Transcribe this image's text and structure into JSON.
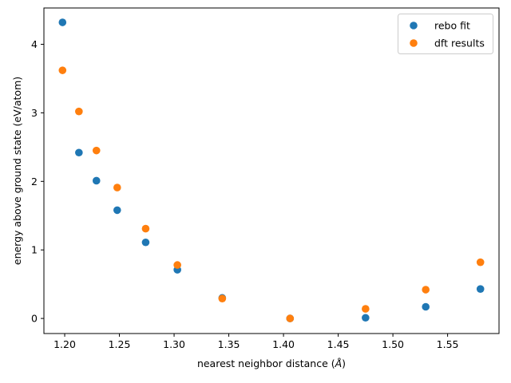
{
  "chart_data": {
    "type": "scatter",
    "title": "",
    "xlabel": "nearest neighbor distance (",
    "xlabel_unit": "Å",
    "xlabel_suffix": ")",
    "ylabel": "energy above ground state (eV/atom)",
    "xlim": [
      1.181,
      1.597
    ],
    "ylim": [
      -0.22,
      4.53
    ],
    "xticks": [
      1.2,
      1.25,
      1.3,
      1.35,
      1.4,
      1.45,
      1.5,
      1.55
    ],
    "xtick_labels": [
      "1.20",
      "1.25",
      "1.30",
      "1.35",
      "1.40",
      "1.45",
      "1.50",
      "1.55"
    ],
    "yticks": [
      0,
      1,
      2,
      3,
      4
    ],
    "ytick_labels": [
      "0",
      "1",
      "2",
      "3",
      "4"
    ],
    "grid": false,
    "legend_position": "top-right",
    "series": [
      {
        "name": "rebo fit",
        "color": "#1f77b4",
        "x": [
          1.198,
          1.213,
          1.229,
          1.248,
          1.274,
          1.303,
          1.344,
          1.406,
          1.475,
          1.53,
          1.58
        ],
        "y": [
          4.32,
          2.42,
          2.01,
          1.58,
          1.11,
          0.71,
          0.3,
          0.0,
          0.01,
          0.17,
          0.43
        ]
      },
      {
        "name": "dft results",
        "color": "#ff7f0e",
        "x": [
          1.198,
          1.213,
          1.229,
          1.248,
          1.274,
          1.303,
          1.344,
          1.406,
          1.475,
          1.53,
          1.58
        ],
        "y": [
          3.62,
          3.02,
          2.45,
          1.91,
          1.31,
          0.78,
          0.29,
          0.0,
          0.14,
          0.42,
          0.82
        ]
      }
    ]
  }
}
